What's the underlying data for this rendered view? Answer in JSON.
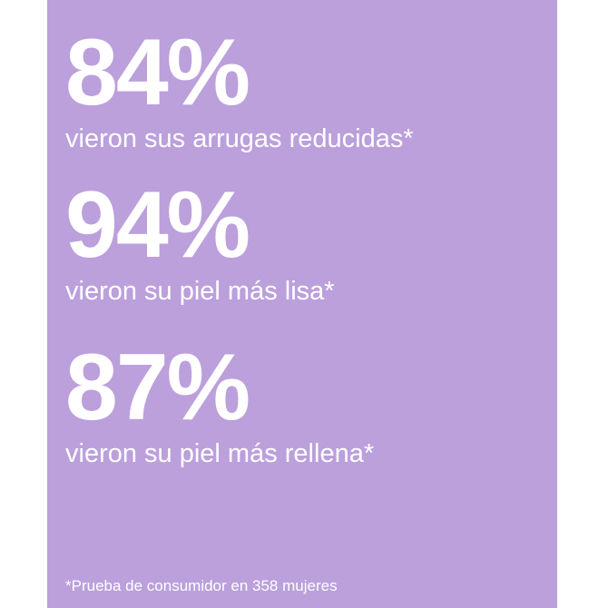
{
  "colors": {
    "background": "#ffffff",
    "panel": "#bba0dc",
    "text": "#ffffff"
  },
  "stats": [
    {
      "value": "84%",
      "caption": "vieron sus arrugas reducidas*"
    },
    {
      "value": "94%",
      "caption": "vieron su piel más lisa*"
    },
    {
      "value": "87%",
      "caption": "vieron su piel más rellena*"
    }
  ],
  "footnote": "*Prueba de consumidor en 358 mujeres"
}
